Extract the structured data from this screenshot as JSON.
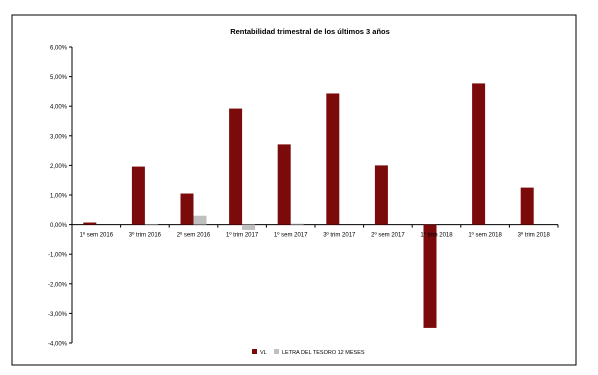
{
  "chart_data": {
    "type": "bar",
    "title": "Rentabilidad trimestral de los últimos 3 años",
    "categories": [
      "1º sem 2016",
      "3º trim 2016",
      "2º sem 2016",
      "1º trim 2017",
      "1º sem 2017",
      "3º trim 2017",
      "2º sem 2017",
      "1º trim 2018",
      "1º sem 2018",
      "3º trim 2018"
    ],
    "series": [
      {
        "name": "VL",
        "color": "#7b0b0b",
        "values": [
          0.07,
          1.96,
          1.05,
          3.92,
          2.71,
          4.43,
          2.0,
          -3.49,
          4.77,
          1.25
        ]
      },
      {
        "name": "LETRA DEL TESORO 12 MESES",
        "color": "#bfbfbf",
        "values": [
          0.0,
          0.02,
          0.3,
          -0.18,
          0.03,
          0.0,
          0.0,
          0.0,
          0.0,
          0.0
        ]
      }
    ],
    "ylim": [
      -4,
      6
    ],
    "yticks": [
      6,
      5,
      4,
      3,
      2,
      1,
      0,
      -1,
      -2,
      -3,
      -4
    ],
    "ytick_labels": [
      "6,00%",
      "5,00%",
      "4,00%",
      "3,00%",
      "2,00%",
      "1,00%",
      "0,00%",
      "-1,00%",
      "-2,00%",
      "-3,00%",
      "-4,00%"
    ],
    "grid": false,
    "legend_position": "bottom"
  }
}
